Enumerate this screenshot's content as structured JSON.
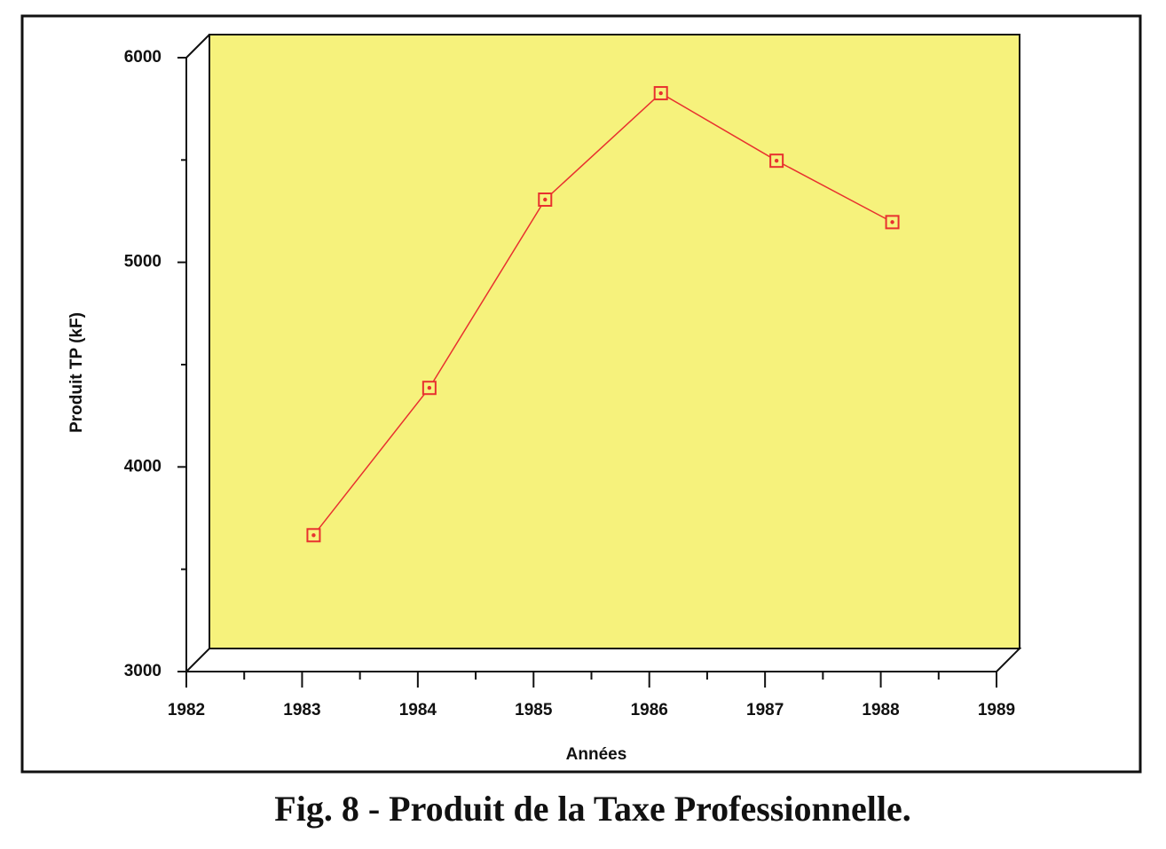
{
  "chart_data": {
    "type": "line",
    "title": "Fig. 8 - Produit  de la Taxe  Professionnelle.",
    "x_label": "Années",
    "y_label": "Produit TP (kF)",
    "x": [
      1983,
      1984,
      1985,
      1986,
      1987,
      1988
    ],
    "series": [
      {
        "color": "#e8312f",
        "values": [
          3610,
          4330,
          5250,
          5770,
          5440,
          5140
        ]
      }
    ],
    "xlim": [
      1982,
      1989
    ],
    "xticks": [
      1982,
      1983,
      1984,
      1985,
      1986,
      1987,
      1988,
      1989
    ],
    "ylim": [
      3000,
      6000
    ],
    "yticks": [
      3000,
      4000,
      5000,
      6000
    ],
    "plot_background": "#f6f27c"
  }
}
